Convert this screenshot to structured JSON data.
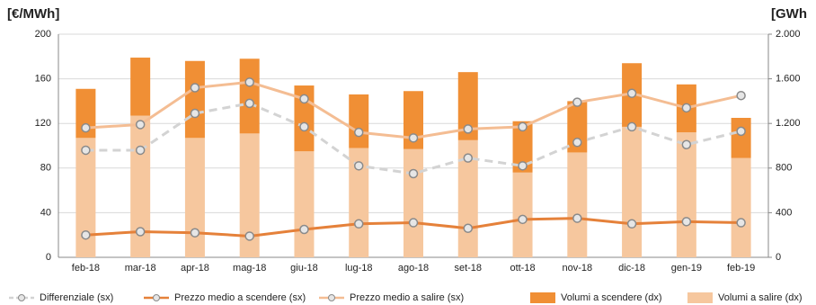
{
  "chart_data": {
    "type": "bar",
    "y_title": "[€/MWh]",
    "y2_title": "[GWh",
    "categories": [
      "feb-18",
      "mar-18",
      "apr-18",
      "mag-18",
      "giu-18",
      "lug-18",
      "ago-18",
      "set-18",
      "ott-18",
      "nov-18",
      "dic-18",
      "gen-19",
      "feb-19"
    ],
    "series": [
      {
        "name": "Differenziale (sx)",
        "type": "line",
        "dashed": true,
        "color": "#d3d3d3",
        "values": [
          96,
          96,
          129,
          138,
          117,
          82,
          75,
          89,
          82,
          103,
          117,
          101,
          113
        ]
      },
      {
        "name": "Prezzo medio a scendere (sx)",
        "type": "line",
        "dashed": false,
        "color": "#e5813a",
        "values": [
          20,
          23,
          22,
          19,
          25,
          30,
          31,
          26,
          34,
          35,
          30,
          32,
          31
        ]
      },
      {
        "name": "Prezzo medio a salire (sx)",
        "type": "line",
        "dashed": false,
        "color": "#f4bd93",
        "values": [
          116,
          119,
          152,
          157,
          142,
          112,
          107,
          115,
          117,
          139,
          147,
          134,
          145
        ]
      },
      {
        "name": "Volumi a scendere (dx)",
        "type": "bar",
        "axis": "y2",
        "color": "#f08f35",
        "values": [
          440,
          520,
          690,
          670,
          590,
          480,
          520,
          610,
          460,
          460,
          570,
          430,
          360
        ]
      },
      {
        "name": "Volumi a salire (dx)",
        "type": "bar",
        "axis": "y2",
        "color": "#f6c79e",
        "values": [
          1070,
          1270,
          1070,
          1110,
          950,
          980,
          970,
          1050,
          760,
          940,
          1170,
          1120,
          890
        ]
      }
    ],
    "ylim": [
      0,
      200
    ],
    "yticks": [
      0,
      40,
      80,
      120,
      160,
      200
    ],
    "y2lim": [
      0,
      2000
    ],
    "y2ticks": [
      0,
      400,
      800,
      {
        "value": 1200,
        "label": "1.200"
      },
      {
        "value": 1600,
        "label": "1.600"
      },
      {
        "value": 2000,
        "label": "2.000"
      }
    ],
    "grid": true
  }
}
